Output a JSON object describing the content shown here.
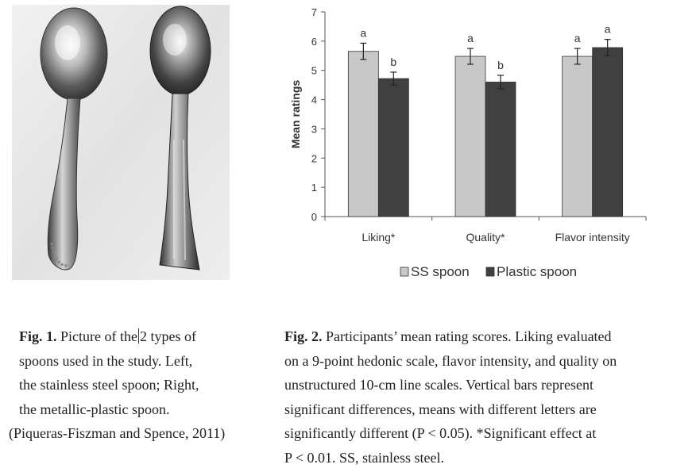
{
  "figure1": {
    "label": "Fig. 1.",
    "line1_before_cursor": "Picture of the",
    "line1_after_cursor": "2 types of",
    "line2": "spoons used in the study. Left,",
    "line3": "the stainless steel spoon; Right,",
    "line4": "the metallic-plastic spoon.",
    "source": "(Piqueras-Fiszman and Spence, 2011)"
  },
  "figure2": {
    "label": "Fig. 2.",
    "line1": "Participants’ mean rating scores. Liking evaluated",
    "line2": "on a 9-point hedonic scale, flavor intensity, and quality on",
    "line3": "unstructured 10-cm line scales. Vertical bars represent",
    "line4": "significant differences, means with different letters are",
    "line5": "significantly different (P < 0.05). *Significant effect at",
    "line6": "P < 0.01. SS, stainless steel."
  },
  "chart_data": {
    "type": "bar",
    "categories": [
      "Liking*",
      "Quality*",
      "Flavor intensity"
    ],
    "series": [
      {
        "name": "SS spoon",
        "color": "#c8c8c8",
        "values": [
          5.65,
          5.48,
          5.48
        ],
        "errors": [
          0.28,
          0.27,
          0.27
        ],
        "letters": [
          "a",
          "a",
          "a"
        ]
      },
      {
        "name": "Plastic spoon",
        "color": "#404040",
        "values": [
          4.72,
          4.6,
          5.78
        ],
        "errors": [
          0.22,
          0.23,
          0.28
        ],
        "letters": [
          "b",
          "b",
          "a"
        ]
      }
    ],
    "ylabel": "Mean ratings",
    "xlabel": "",
    "ylim": [
      0,
      7
    ],
    "yticks": [
      0,
      1,
      2,
      3,
      4,
      5,
      6,
      7
    ],
    "grid": false,
    "legend_position": "bottom"
  }
}
